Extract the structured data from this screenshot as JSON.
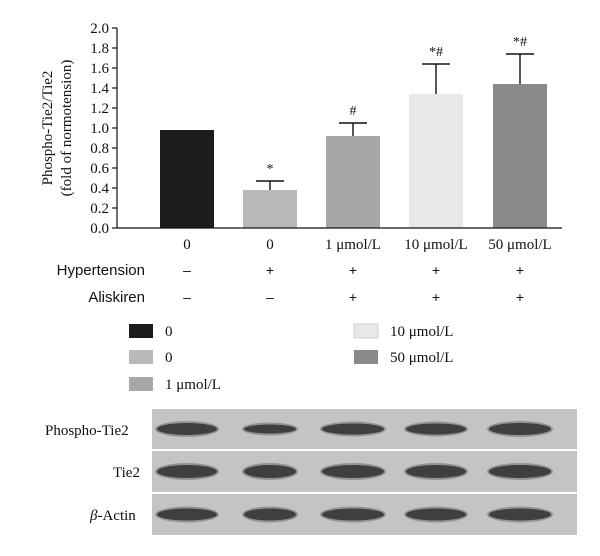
{
  "chart_data": {
    "type": "bar",
    "ylabel_lines": [
      "Phospho-Tie2/Tie2",
      "(fold of normotension)"
    ],
    "ylim": [
      0,
      2.0
    ],
    "yticks": [
      "0.0",
      "0.2",
      "0.4",
      "0.6",
      "0.8",
      "1.0",
      "1.2",
      "1.4",
      "1.6",
      "1.8",
      "2.0"
    ],
    "categories": [
      "0",
      "0",
      "1 μmol/L",
      "10 μmol/L",
      "50 μmol/L"
    ],
    "values": [
      0.98,
      0.38,
      0.92,
      1.34,
      1.44
    ],
    "errors": [
      0,
      0.09,
      0.13,
      0.3,
      0.3
    ],
    "annotations": [
      "",
      "*",
      "#",
      "*#",
      "*#"
    ],
    "colors": [
      "#1c1c1c",
      "#b9b9b9",
      "#a7a7a7",
      "#e8e8e8",
      "#8a8a8a"
    ],
    "grid": false
  },
  "conditions": [
    {
      "label": "Hypertension",
      "values": [
        "–",
        "+",
        "+",
        "+",
        "+"
      ]
    },
    {
      "label": "Aliskiren",
      "values": [
        "–",
        "–",
        "+",
        "+",
        "+"
      ]
    }
  ],
  "legend": [
    {
      "label": "0",
      "color": "#1c1c1c"
    },
    {
      "label": "0",
      "color": "#b9b9b9"
    },
    {
      "label": "1 μmol/L",
      "color": "#a7a7a7"
    },
    {
      "label": "10 μmol/L",
      "color": "#e8e8e8"
    },
    {
      "label": "50 μmol/L",
      "color": "#8a8a8a"
    }
  ],
  "blots": [
    {
      "label": "Phospho-Tie2"
    },
    {
      "label": "Tie2"
    },
    {
      "label_prefix": "β",
      "label_suffix": "-Actin"
    }
  ]
}
